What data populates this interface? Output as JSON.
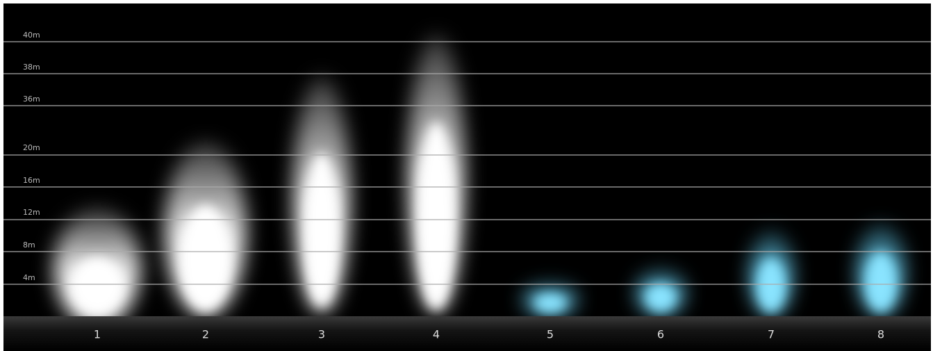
{
  "levels": [
    "40m",
    "38m",
    "36m",
    "20m",
    "16m",
    "12m",
    "8m",
    "4m"
  ],
  "beams": [
    "1",
    "2",
    "3",
    "4",
    "5",
    "6",
    "7",
    "8"
  ]
}
